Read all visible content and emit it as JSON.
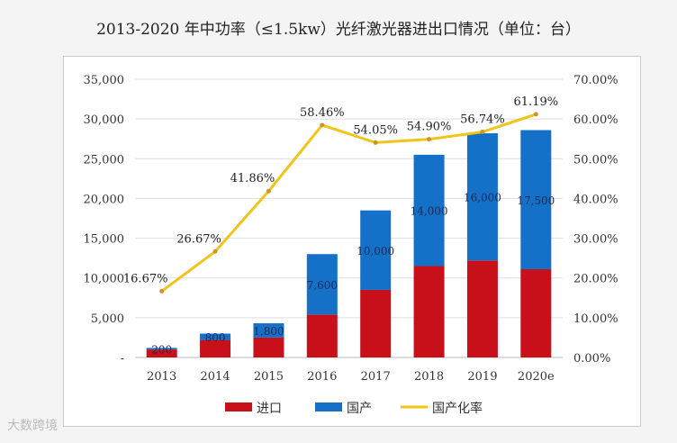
{
  "title": "2013-2020 年中功率（≤1.5kw）光纤激光器进出口情况（单位：台）",
  "watermark": "大数跨境",
  "chart_data": {
    "type": "bar",
    "stacked": true,
    "title": "2013-2020 年中功率（≤1.5kw）光纤激光器进出口情况（单位：台）",
    "categories": [
      "2013",
      "2014",
      "2015",
      "2016",
      "2017",
      "2018",
      "2019",
      "2020e"
    ],
    "series": [
      {
        "name": "进口",
        "type": "bar",
        "color": "#c8101a",
        "values": [
          1000,
          2200,
          2500,
          5400,
          8500,
          11500,
          12200,
          11100
        ]
      },
      {
        "name": "国产",
        "type": "bar",
        "color": "#1570c8",
        "values": [
          200,
          800,
          1800,
          7600,
          10000,
          14000,
          16000,
          17500
        ],
        "labels": [
          "200",
          "800",
          "1,800",
          "7,600",
          "10,000",
          "14,000",
          "16,000",
          "17,500"
        ]
      },
      {
        "name": "国产化率",
        "type": "line",
        "axis": "right",
        "color": "#f0c419",
        "values": [
          16.67,
          26.67,
          41.86,
          58.46,
          54.05,
          54.9,
          56.74,
          61.19
        ],
        "labels": [
          "16.67%",
          "26.67%",
          "41.86%",
          "58.46%",
          "54.05%",
          "54.90%",
          "56.74%",
          "61.19%"
        ]
      }
    ],
    "ylim": [
      0,
      35000
    ],
    "yticks": [
      "-",
      "5,000",
      "10,000",
      "15,000",
      "20,000",
      "25,000",
      "30,000",
      "35,000"
    ],
    "y2lim": [
      0,
      70
    ],
    "y2ticks": [
      "0.00%",
      "10.00%",
      "20.00%",
      "30.00%",
      "40.00%",
      "50.00%",
      "60.00%",
      "70.00%"
    ],
    "grid": true,
    "legend": "bottom"
  }
}
